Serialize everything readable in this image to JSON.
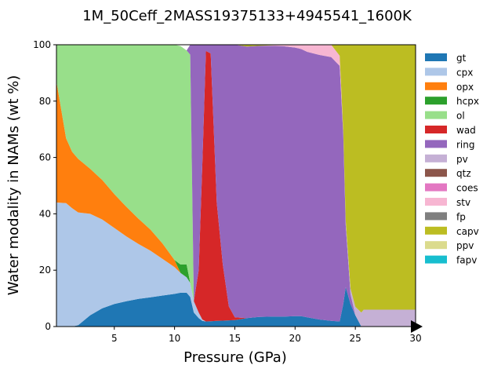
{
  "chart_data": {
    "type": "area",
    "stacked": true,
    "title": "1M_50Ceff_2MASS19375133+4945541_1600K",
    "xlabel": "Pressure (GPa)",
    "ylabel": "Water modality in NAMs (wt %)",
    "xlim": [
      0.2,
      30
    ],
    "ylim": [
      0,
      100
    ],
    "xticks": [
      5,
      10,
      15,
      20,
      25,
      30
    ],
    "yticks": [
      0,
      20,
      40,
      60,
      80,
      100
    ],
    "legend_position": "right",
    "x": [
      0.2,
      1.0,
      1.5,
      2.0,
      3.0,
      4.0,
      5.0,
      6.0,
      7.0,
      8.0,
      9.0,
      10.0,
      10.5,
      11.0,
      11.3,
      11.6,
      12.0,
      12.3,
      12.6,
      13.0,
      13.5,
      14.0,
      14.5,
      15.0,
      16.0,
      17.0,
      18.0,
      19.0,
      20.0,
      20.5,
      21.0,
      22.0,
      23.0,
      23.7,
      24.0,
      24.2,
      24.6,
      25.0,
      25.5,
      25.7,
      26.0,
      27.0,
      28.0,
      29.0,
      30.0
    ],
    "series": [
      {
        "name": "gt",
        "color": "#1f77b4",
        "values": [
          0,
          0,
          0,
          0.5,
          4,
          6.5,
          8,
          9,
          9.8,
          10.4,
          11,
          11.6,
          12,
          12,
          10.5,
          5,
          3,
          2,
          1.8,
          1.9,
          2,
          2.1,
          2.2,
          2.3,
          3,
          3.4,
          3.5,
          3.5,
          3.7,
          3.7,
          3.3,
          2.5,
          2,
          1.8,
          8,
          14,
          8,
          4,
          0,
          0,
          0,
          0,
          0,
          0,
          0
        ]
      },
      {
        "name": "cpx",
        "color": "#aec7e8",
        "values": [
          44,
          43.8,
          42,
          40,
          36,
          31.5,
          27,
          23,
          19.5,
          16.5,
          13,
          9.5,
          7,
          5.5,
          5,
          4,
          2,
          0.5,
          0,
          0,
          0,
          0,
          0,
          0,
          0,
          0,
          0,
          0,
          0,
          0,
          0,
          0,
          0,
          0,
          0,
          0,
          0,
          0,
          0,
          0,
          0,
          0,
          0,
          0,
          0
        ]
      },
      {
        "name": "opx",
        "color": "#ff7f0e",
        "values": [
          43,
          23,
          20,
          19,
          16,
          14,
          12,
          10.5,
          9,
          7.5,
          5.5,
          2.5,
          0,
          0,
          0,
          0,
          0,
          0,
          0,
          0,
          0,
          0,
          0,
          0,
          0,
          0,
          0,
          0,
          0,
          0,
          0,
          0,
          0,
          0,
          0,
          0,
          0,
          0,
          0,
          0,
          0,
          0,
          0,
          0,
          0
        ]
      },
      {
        "name": "hcpx",
        "color": "#2ca02c",
        "values": [
          0,
          0,
          0,
          0,
          0,
          0,
          0,
          0,
          0,
          0,
          0,
          0,
          3,
          4.5,
          0,
          0,
          0,
          0,
          0,
          0,
          0,
          0,
          0,
          0,
          0,
          0,
          0,
          0,
          0,
          0,
          0,
          0,
          0,
          0,
          0,
          0,
          0,
          0,
          0,
          0,
          0,
          0,
          0,
          0,
          0
        ]
      },
      {
        "name": "ol",
        "color": "#98df8a",
        "values": [
          13,
          33.2,
          38,
          40.5,
          44,
          48,
          53,
          57.5,
          61.7,
          65.6,
          70.5,
          76.4,
          77.5,
          76,
          81,
          0,
          0,
          0,
          0,
          0,
          0,
          0,
          0,
          0,
          0,
          0,
          0,
          0,
          0,
          0,
          0,
          0,
          0,
          0,
          0,
          0,
          0,
          0,
          0,
          0,
          0,
          0,
          0,
          0,
          0
        ]
      },
      {
        "name": "wad",
        "color": "#d62728",
        "values": [
          0,
          0,
          0,
          0,
          0,
          0,
          0,
          0,
          0,
          0,
          0,
          0,
          0,
          0,
          0,
          0,
          15,
          55,
          96,
          95,
          42,
          20,
          5,
          1,
          0,
          0,
          0,
          0,
          0,
          0,
          0,
          0,
          0,
          0,
          0,
          0,
          0,
          0,
          0,
          0,
          0,
          0,
          0,
          0,
          0
        ]
      },
      {
        "name": "ring",
        "color": "#9467bd",
        "values": [
          0,
          0,
          0,
          0,
          0,
          0,
          0,
          0,
          0,
          0,
          0,
          0,
          0,
          0,
          3.5,
          91,
          80,
          42.5,
          2.2,
          3.1,
          56,
          77.9,
          92.8,
          96.7,
          96.4,
          96.2,
          96.1,
          96,
          95.3,
          94.8,
          94.2,
          93.9,
          93.6,
          90.7,
          60,
          22,
          3.5,
          0,
          0,
          0,
          0,
          0,
          0,
          0,
          0
        ]
      },
      {
        "name": "pv",
        "color": "#c5b0d5",
        "values": [
          0,
          0,
          0,
          0,
          0,
          0,
          0,
          0,
          0,
          0,
          0,
          0,
          0,
          0,
          0,
          0,
          0,
          0,
          0,
          0,
          0,
          0,
          0,
          0,
          0,
          0,
          0,
          0,
          0,
          0,
          0,
          0,
          0,
          0,
          1,
          1.5,
          2,
          3,
          5,
          6,
          6,
          6,
          6,
          6,
          6
        ]
      },
      {
        "name": "qtz",
        "color": "#8c564b",
        "values": [
          0,
          0,
          0,
          0,
          0,
          0,
          0,
          0,
          0,
          0,
          0,
          0,
          0,
          0,
          0,
          0,
          0,
          0,
          0,
          0,
          0,
          0,
          0,
          0,
          0,
          0,
          0,
          0,
          0,
          0,
          0,
          0,
          0,
          0,
          0,
          0,
          0,
          0,
          0,
          0,
          0,
          0,
          0,
          0,
          0
        ]
      },
      {
        "name": "coes",
        "color": "#e377c2",
        "values": [
          0,
          0,
          0,
          0,
          0,
          0,
          0,
          0,
          0,
          0,
          0,
          0,
          0,
          0,
          0,
          0,
          0,
          0,
          0,
          0,
          0,
          0,
          0,
          0,
          0,
          0,
          0,
          0,
          0,
          0,
          0,
          0,
          0,
          0,
          0,
          0,
          0,
          0,
          0,
          0,
          0,
          0,
          0,
          0,
          0
        ]
      },
      {
        "name": "stv",
        "color": "#f7b6d2",
        "values": [
          0,
          0,
          0,
          0,
          0,
          0,
          0,
          0,
          0,
          0,
          0,
          0,
          0,
          0,
          0,
          0,
          0,
          0,
          0,
          0,
          0,
          0,
          0,
          0,
          0,
          0,
          0.2,
          0.5,
          1,
          1.5,
          2.5,
          3.6,
          4.4,
          3.6,
          0,
          0,
          0,
          0,
          0,
          0,
          0,
          0,
          0,
          0,
          0
        ]
      },
      {
        "name": "fp",
        "color": "#7f7f7f",
        "values": [
          0,
          0,
          0,
          0,
          0,
          0,
          0,
          0,
          0,
          0,
          0,
          0,
          0,
          0,
          0,
          0,
          0,
          0,
          0,
          0,
          0,
          0,
          0,
          0,
          0,
          0,
          0,
          0,
          0,
          0,
          0,
          0,
          0,
          0,
          0,
          0,
          0,
          0,
          0,
          0,
          0,
          0,
          0,
          0,
          0
        ]
      },
      {
        "name": "capv",
        "color": "#bcbd22",
        "values": [
          0,
          0,
          0,
          0,
          0,
          0,
          0,
          0,
          0,
          0,
          0,
          0,
          0,
          0,
          0,
          0,
          0,
          0,
          0,
          0,
          0,
          0,
          0,
          0,
          0.6,
          0.4,
          0.2,
          0,
          0,
          0,
          0,
          0,
          0,
          3.9,
          31,
          62.5,
          86.5,
          93,
          95,
          94,
          94,
          94,
          94,
          94,
          94
        ]
      },
      {
        "name": "ppv",
        "color": "#dbdb8d",
        "values": [
          0,
          0,
          0,
          0,
          0,
          0,
          0,
          0,
          0,
          0,
          0,
          0,
          0,
          0,
          0,
          0,
          0,
          0,
          0,
          0,
          0,
          0,
          0,
          0,
          0,
          0,
          0,
          0,
          0,
          0,
          0,
          0,
          0,
          0,
          0,
          0,
          0,
          0,
          0,
          0,
          0,
          0,
          0,
          0,
          0
        ]
      },
      {
        "name": "fapv",
        "color": "#17becf",
        "values": [
          0,
          0,
          0,
          0,
          0,
          0,
          0,
          0,
          0,
          0,
          0,
          0,
          0,
          0,
          0,
          0,
          0,
          0,
          0,
          0,
          0,
          0,
          0,
          0,
          0,
          0,
          0,
          0,
          0,
          0,
          0,
          0,
          0,
          0,
          0,
          0,
          0,
          0,
          0,
          0,
          0,
          0,
          0,
          0,
          0
        ]
      }
    ]
  }
}
